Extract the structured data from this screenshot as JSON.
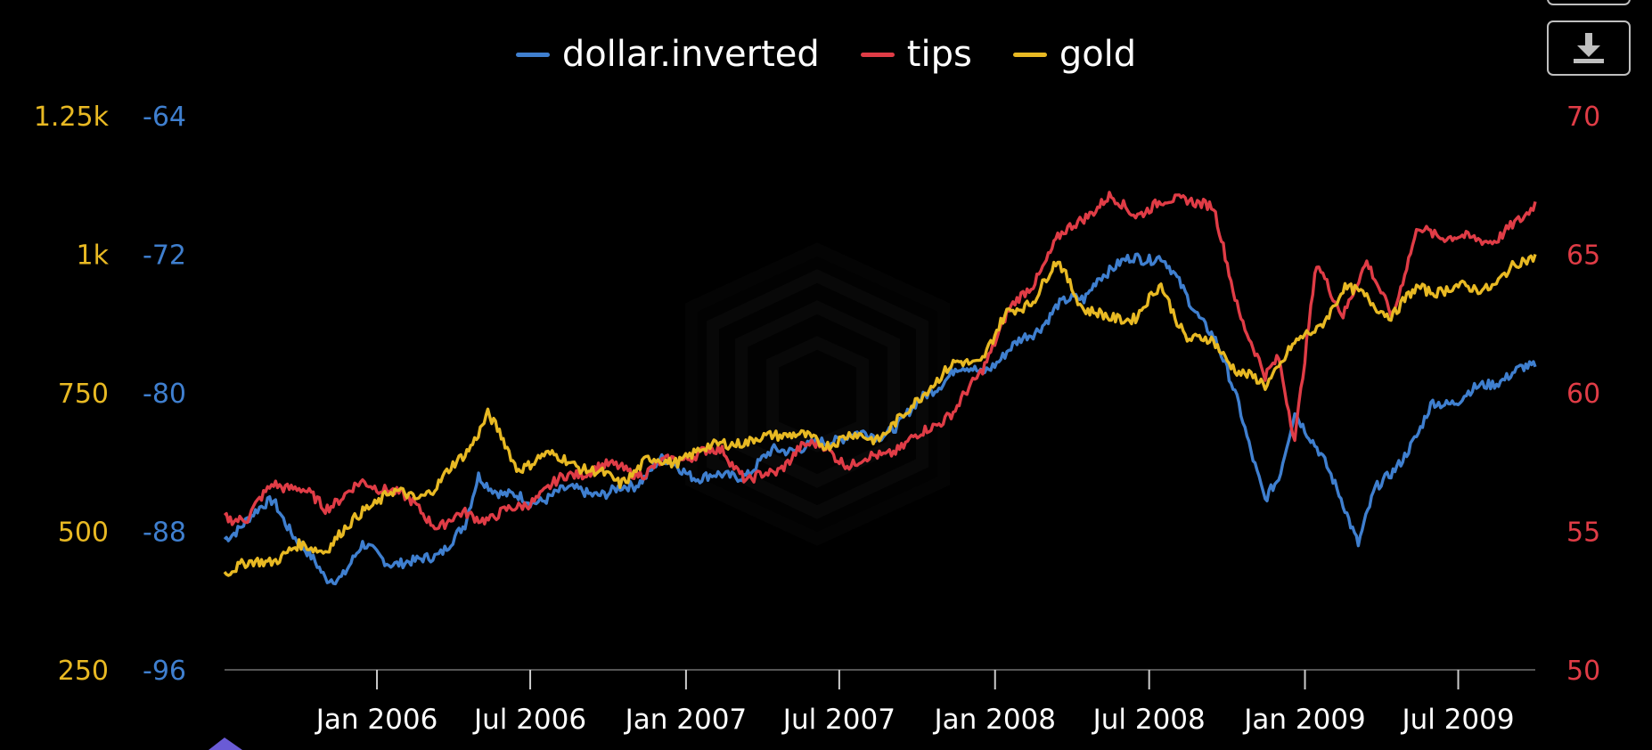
{
  "chart_data": {
    "type": "line",
    "title": "",
    "xlabel": "",
    "x_ticks": [
      "Jan 2006",
      "Jul 2006",
      "Jan 2007",
      "Jul 2007",
      "Jan 2008",
      "Jul 2008",
      "Jan 2009",
      "Jul 2009"
    ],
    "x_range": [
      "2005-07-05",
      "2009-09-30"
    ],
    "axes": {
      "gold": {
        "ticks": [
          "1.25k",
          "1k",
          "750",
          "500",
          "250"
        ],
        "range": [
          250,
          1250
        ],
        "color": "#e8b923"
      },
      "dollar": {
        "ticks": [
          "-64",
          "-72",
          "-80",
          "-88",
          "-96"
        ],
        "range": [
          -96,
          -64
        ],
        "color": "#3f7fcf"
      },
      "tips": {
        "ticks": [
          "70",
          "65",
          "60",
          "55",
          "50"
        ],
        "range": [
          50,
          70
        ],
        "color": "#e03c46"
      }
    },
    "grid": false,
    "legend_position": "top-center",
    "series": [
      {
        "name": "dollar.inverted",
        "axis": "dollar",
        "color": "#3f7fcf",
        "points": [
          [
            "2005-07-05",
            -88.5
          ],
          [
            "2005-08-01",
            -87.2
          ],
          [
            "2005-09-01",
            -86.3
          ],
          [
            "2005-10-01",
            -88.6
          ],
          [
            "2005-11-01",
            -90.8
          ],
          [
            "2005-11-20",
            -90.5
          ],
          [
            "2005-12-15",
            -88.9
          ],
          [
            "2006-01-15",
            -89.7
          ],
          [
            "2006-02-15",
            -89.9
          ],
          [
            "2006-03-15",
            -89.2
          ],
          [
            "2006-04-15",
            -87.8
          ],
          [
            "2006-05-01",
            -84.8
          ],
          [
            "2006-06-01",
            -85.9
          ],
          [
            "2006-07-01",
            -86.3
          ],
          [
            "2006-08-01",
            -85.8
          ],
          [
            "2006-09-01",
            -85.6
          ],
          [
            "2006-10-01",
            -85.9
          ],
          [
            "2006-11-01",
            -85.3
          ],
          [
            "2006-12-01",
            -83.9
          ],
          [
            "2007-01-15",
            -84.8
          ],
          [
            "2007-02-15",
            -84.9
          ],
          [
            "2007-03-15",
            -84.6
          ],
          [
            "2007-04-15",
            -83.4
          ],
          [
            "2007-05-15",
            -83.1
          ],
          [
            "2007-06-15",
            -83.0
          ],
          [
            "2007-07-15",
            -82.2
          ],
          [
            "2007-08-15",
            -82.7
          ],
          [
            "2007-09-15",
            -81.4
          ],
          [
            "2007-10-15",
            -80.1
          ],
          [
            "2007-11-15",
            -78.5
          ],
          [
            "2007-12-15",
            -78.9
          ],
          [
            "2008-01-15",
            -77.6
          ],
          [
            "2008-02-15",
            -76.6
          ],
          [
            "2008-03-15",
            -74.9
          ],
          [
            "2008-04-15",
            -74.6
          ],
          [
            "2008-05-01",
            -73.2
          ],
          [
            "2008-05-20",
            -72.9
          ],
          [
            "2008-06-15",
            -72.1
          ],
          [
            "2008-07-15",
            -72.2
          ],
          [
            "2008-08-15",
            -74.4
          ],
          [
            "2008-09-15",
            -76.8
          ],
          [
            "2008-10-15",
            -80.6
          ],
          [
            "2008-11-15",
            -86.3
          ],
          [
            "2008-12-01",
            -85.1
          ],
          [
            "2008-12-20",
            -80.9
          ],
          [
            "2009-01-15",
            -83.3
          ],
          [
            "2009-02-15",
            -86.2
          ],
          [
            "2009-03-05",
            -88.7
          ],
          [
            "2009-03-25",
            -85.7
          ],
          [
            "2009-04-15",
            -84.4
          ],
          [
            "2009-05-15",
            -82.5
          ],
          [
            "2009-06-01",
            -80.6
          ],
          [
            "2009-07-01",
            -80.4
          ],
          [
            "2009-08-01",
            -79.6
          ],
          [
            "2009-09-01",
            -78.9
          ],
          [
            "2009-09-30",
            -78.5
          ]
        ]
      },
      {
        "name": "tips",
        "axis": "tips",
        "color": "#e03c46",
        "points": [
          [
            "2005-07-05",
            55.6
          ],
          [
            "2005-08-01",
            55.4
          ],
          [
            "2005-09-01",
            56.8
          ],
          [
            "2005-10-01",
            56.5
          ],
          [
            "2005-11-01",
            55.9
          ],
          [
            "2005-12-15",
            56.7
          ],
          [
            "2006-01-15",
            56.6
          ],
          [
            "2006-02-15",
            55.9
          ],
          [
            "2006-03-15",
            55.2
          ],
          [
            "2006-04-15",
            55.6
          ],
          [
            "2006-05-15",
            55.5
          ],
          [
            "2006-06-15",
            55.8
          ],
          [
            "2006-07-15",
            56.4
          ],
          [
            "2006-08-15",
            57.0
          ],
          [
            "2006-09-15",
            57.3
          ],
          [
            "2006-10-15",
            57.3
          ],
          [
            "2006-11-15",
            57.1
          ],
          [
            "2006-12-15",
            57.6
          ],
          [
            "2007-01-15",
            57.8
          ],
          [
            "2007-02-15",
            57.9
          ],
          [
            "2007-03-15",
            56.8
          ],
          [
            "2007-04-15",
            57.1
          ],
          [
            "2007-05-15",
            58.0
          ],
          [
            "2007-06-15",
            58.1
          ],
          [
            "2007-07-15",
            57.3
          ],
          [
            "2007-08-15",
            57.8
          ],
          [
            "2007-09-15",
            58.0
          ],
          [
            "2007-10-15",
            58.8
          ],
          [
            "2007-11-15",
            59.3
          ],
          [
            "2007-12-15",
            60.8
          ],
          [
            "2008-01-15",
            62.8
          ],
          [
            "2008-02-15",
            64.0
          ],
          [
            "2008-03-15",
            65.5
          ],
          [
            "2008-04-15",
            66.4
          ],
          [
            "2008-05-15",
            67.0
          ],
          [
            "2008-06-15",
            66.5
          ],
          [
            "2008-07-15",
            66.8
          ],
          [
            "2008-08-15",
            67.1
          ],
          [
            "2008-09-15",
            66.6
          ],
          [
            "2008-10-15",
            63.0
          ],
          [
            "2008-11-15",
            60.5
          ],
          [
            "2008-12-01",
            61.3
          ],
          [
            "2008-12-20",
            58.4
          ],
          [
            "2009-01-15",
            64.6
          ],
          [
            "2009-02-15",
            62.9
          ],
          [
            "2009-03-15",
            64.6
          ],
          [
            "2009-04-15",
            62.9
          ],
          [
            "2009-05-15",
            65.9
          ],
          [
            "2009-06-15",
            65.7
          ],
          [
            "2009-07-15",
            65.5
          ],
          [
            "2009-08-15",
            65.6
          ],
          [
            "2009-09-15",
            66.2
          ],
          [
            "2009-09-30",
            66.9
          ]
        ]
      },
      {
        "name": "gold",
        "axis": "gold",
        "color": "#e8b923",
        "points": [
          [
            "2005-07-05",
            430
          ],
          [
            "2005-08-01",
            438
          ],
          [
            "2005-09-01",
            451
          ],
          [
            "2005-10-01",
            470
          ],
          [
            "2005-11-01",
            470
          ],
          [
            "2005-12-01",
            510
          ],
          [
            "2005-12-20",
            545
          ],
          [
            "2006-01-15",
            570
          ],
          [
            "2006-02-15",
            560
          ],
          [
            "2006-03-15",
            585
          ],
          [
            "2006-04-15",
            640
          ],
          [
            "2006-05-12",
            712
          ],
          [
            "2006-06-15",
            615
          ],
          [
            "2006-07-15",
            635
          ],
          [
            "2006-08-15",
            630
          ],
          [
            "2006-09-15",
            605
          ],
          [
            "2006-10-15",
            590
          ],
          [
            "2006-11-15",
            625
          ],
          [
            "2006-12-15",
            628
          ],
          [
            "2007-01-15",
            640
          ],
          [
            "2007-02-15",
            665
          ],
          [
            "2007-03-15",
            655
          ],
          [
            "2007-04-15",
            680
          ],
          [
            "2007-05-15",
            670
          ],
          [
            "2007-06-15",
            660
          ],
          [
            "2007-07-15",
            670
          ],
          [
            "2007-08-15",
            670
          ],
          [
            "2007-09-15",
            705
          ],
          [
            "2007-10-15",
            765
          ],
          [
            "2007-11-15",
            800
          ],
          [
            "2007-12-15",
            810
          ],
          [
            "2008-01-15",
            890
          ],
          [
            "2008-02-15",
            920
          ],
          [
            "2008-03-15",
            985
          ],
          [
            "2008-04-15",
            905
          ],
          [
            "2008-05-15",
            880
          ],
          [
            "2008-06-15",
            890
          ],
          [
            "2008-07-15",
            940
          ],
          [
            "2008-08-15",
            850
          ],
          [
            "2008-09-15",
            840
          ],
          [
            "2008-10-15",
            790
          ],
          [
            "2008-11-15",
            760
          ],
          [
            "2008-12-15",
            835
          ],
          [
            "2009-01-15",
            860
          ],
          [
            "2009-02-15",
            940
          ],
          [
            "2009-03-15",
            920
          ],
          [
            "2009-04-15",
            890
          ],
          [
            "2009-05-15",
            940
          ],
          [
            "2009-06-15",
            935
          ],
          [
            "2009-07-15",
            940
          ],
          [
            "2009-08-15",
            945
          ],
          [
            "2009-09-15",
            990
          ],
          [
            "2009-09-30",
            1000
          ]
        ]
      }
    ]
  }
}
